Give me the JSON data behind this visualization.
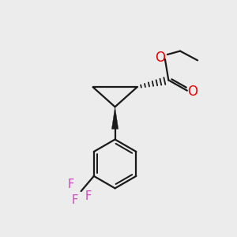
{
  "bg_color": "#ececec",
  "bond_color": "#1a1a1a",
  "oxygen_color": "#ee0000",
  "fluorine_color": "#cc44bb",
  "line_width": 1.6,
  "figsize": [
    3.0,
    3.0
  ],
  "dpi": 100,
  "xlim": [
    0,
    10
  ],
  "ylim": [
    0,
    10
  ]
}
